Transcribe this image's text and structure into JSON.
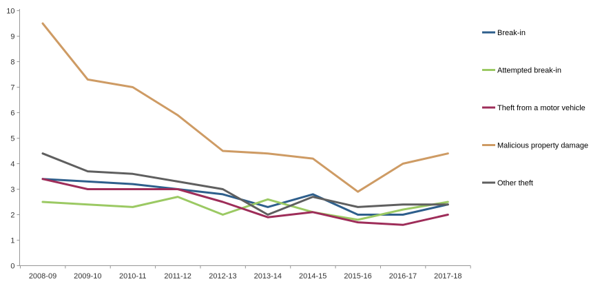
{
  "chart_data": {
    "type": "line",
    "title": "",
    "xlabel": "",
    "ylabel": "",
    "categories": [
      "2008-09",
      "2009-10",
      "2010-11",
      "2011-12",
      "2012-13",
      "2013-14",
      "2014-15",
      "2015-16",
      "2016-17",
      "2017-18"
    ],
    "series": [
      {
        "name": "Break-in",
        "color": "#2E5F8C",
        "values": [
          3.4,
          3.3,
          3.2,
          3.0,
          2.8,
          2.3,
          2.8,
          2.0,
          2.0,
          2.4
        ]
      },
      {
        "name": "Attempted break-in",
        "color": "#9BC963",
        "values": [
          2.5,
          2.4,
          2.3,
          2.7,
          2.0,
          2.6,
          2.1,
          1.8,
          2.2,
          2.5
        ]
      },
      {
        "name": "Theft from a motor vehicle",
        "color": "#9E2D59",
        "values": [
          3.4,
          3.0,
          3.0,
          3.0,
          2.5,
          1.9,
          2.1,
          1.7,
          1.6,
          2.0
        ]
      },
      {
        "name": "Malicious property damage",
        "color": "#CE9B64",
        "values": [
          9.5,
          7.3,
          7.0,
          5.9,
          4.5,
          4.4,
          4.2,
          2.9,
          4.0,
          4.4
        ]
      },
      {
        "name": "Other theft",
        "color": "#5F5F5F",
        "values": [
          4.4,
          3.7,
          3.6,
          3.3,
          3.0,
          2.0,
          2.7,
          2.3,
          2.4,
          2.4
        ]
      }
    ],
    "ylim": [
      0,
      10
    ],
    "yticks": [
      0,
      1,
      2,
      3,
      4,
      5,
      6,
      7,
      8,
      9,
      10
    ],
    "grid": false,
    "legend_position": "right",
    "axis_color": "#969696",
    "label_color": "#333333",
    "line_width": 3
  }
}
